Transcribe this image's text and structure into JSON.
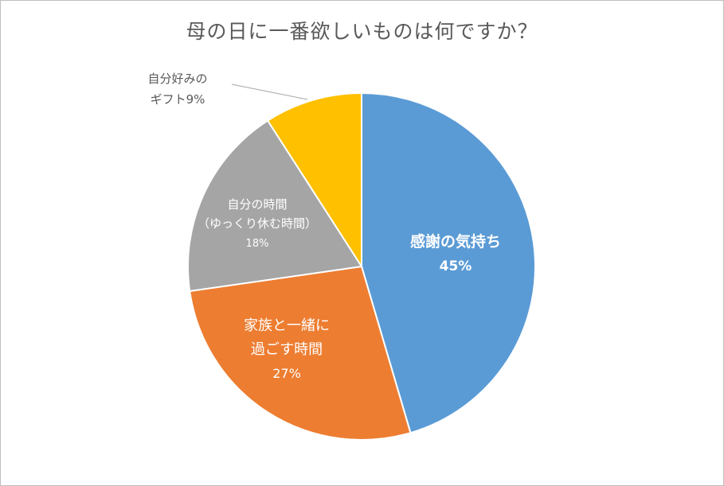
{
  "chart_data": {
    "type": "pie",
    "title": "母の日に一番欲しいものは何ですか？",
    "slices": [
      {
        "lines": [
          "感謝の気持ち"
        ],
        "percent_label": "45%",
        "value": 45,
        "color": "#5b9bd5",
        "label_color": "#ffffff"
      },
      {
        "lines": [
          "家族と一緒に",
          "過ごす時間"
        ],
        "percent_label": "27%",
        "value": 27,
        "color": "#ed7d31",
        "label_color": "#ffffff"
      },
      {
        "lines": [
          "自分の時間",
          "（ゆっくり休む時間）"
        ],
        "percent_label": "18%",
        "value": 18,
        "color": "#a5a5a5",
        "label_color": "#ffffff"
      },
      {
        "lines": [
          "自分好みの",
          "ギフト9%"
        ],
        "percent_label": "",
        "value": 9,
        "color": "#ffc000",
        "label_color": "#595959"
      }
    ]
  }
}
